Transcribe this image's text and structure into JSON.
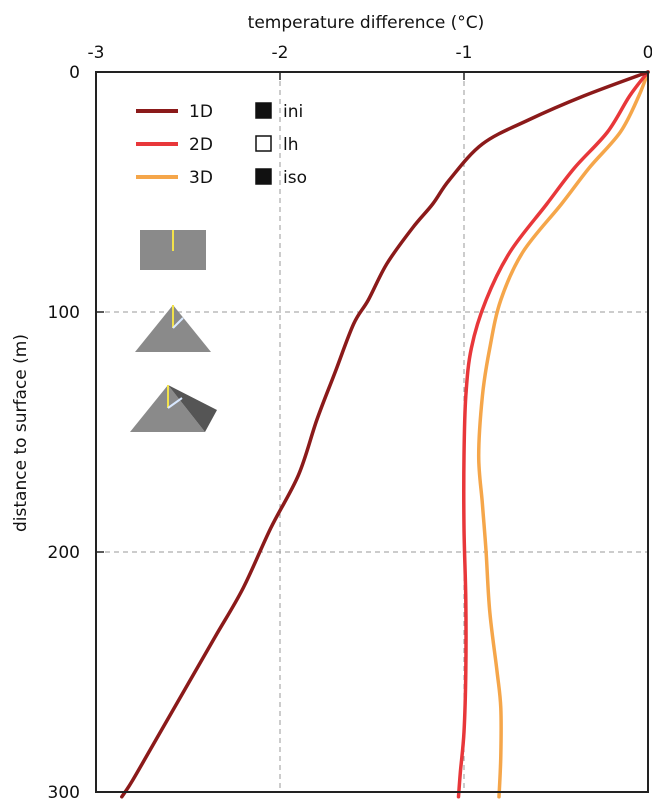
{
  "chart_data": {
    "type": "line",
    "title": "",
    "xlabel": "temperature difference (°C)",
    "ylabel": "distance to surface (m)",
    "xlim": [
      -3,
      0
    ],
    "ylim": [
      0,
      300
    ],
    "y_inverted": true,
    "x_axis_position": "top",
    "grid": true,
    "x_ticks": [
      {
        "value": -3,
        "label": "-3"
      },
      {
        "value": -2,
        "label": "-2"
      },
      {
        "value": -1,
        "label": "-1"
      },
      {
        "value": 0,
        "label": "0"
      }
    ],
    "y_ticks": [
      {
        "value": 0,
        "label": "0"
      },
      {
        "value": 100,
        "label": "100"
      },
      {
        "value": 200,
        "label": "200"
      },
      {
        "value": 300,
        "label": "300"
      }
    ],
    "series": [
      {
        "name": "1D",
        "color": "#8B1A1A",
        "points": [
          [
            0,
            0
          ],
          [
            -0.35,
            10
          ],
          [
            -0.65,
            20
          ],
          [
            -0.9,
            30
          ],
          [
            -1.08,
            45
          ],
          [
            -1.17,
            55
          ],
          [
            -1.28,
            65
          ],
          [
            -1.42,
            80
          ],
          [
            -1.52,
            95
          ],
          [
            -1.6,
            105
          ],
          [
            -1.7,
            125
          ],
          [
            -1.8,
            145
          ],
          [
            -1.9,
            168
          ],
          [
            -2.05,
            190
          ],
          [
            -2.2,
            215
          ],
          [
            -2.35,
            235
          ],
          [
            -2.5,
            255
          ],
          [
            -2.65,
            275
          ],
          [
            -2.8,
            295
          ],
          [
            -2.86,
            302
          ]
        ]
      },
      {
        "name": "2D",
        "color": "#E8373A",
        "points": [
          [
            0,
            0
          ],
          [
            -0.1,
            10
          ],
          [
            -0.22,
            25
          ],
          [
            -0.4,
            40
          ],
          [
            -0.55,
            55
          ],
          [
            -0.75,
            75
          ],
          [
            -0.88,
            95
          ],
          [
            -0.96,
            115
          ],
          [
            -0.99,
            135
          ],
          [
            -1.0,
            160
          ],
          [
            -1.0,
            190
          ],
          [
            -0.99,
            220
          ],
          [
            -0.99,
            250
          ],
          [
            -1.0,
            275
          ],
          [
            -1.02,
            292
          ],
          [
            -1.03,
            302
          ]
        ]
      },
      {
        "name": "3D",
        "color": "#F5A64A",
        "points": [
          [
            0,
            0
          ],
          [
            -0.05,
            10
          ],
          [
            -0.15,
            25
          ],
          [
            -0.32,
            40
          ],
          [
            -0.47,
            55
          ],
          [
            -0.68,
            75
          ],
          [
            -0.8,
            95
          ],
          [
            -0.86,
            115
          ],
          [
            -0.9,
            135
          ],
          [
            -0.92,
            160
          ],
          [
            -0.9,
            180
          ],
          [
            -0.88,
            200
          ],
          [
            -0.86,
            225
          ],
          [
            -0.82,
            250
          ],
          [
            -0.8,
            265
          ],
          [
            -0.8,
            285
          ],
          [
            -0.81,
            302
          ]
        ]
      }
    ],
    "legend": {
      "placement": "top-left",
      "entries": [
        {
          "series": "1D",
          "color": "#8B1A1A"
        },
        {
          "series": "2D",
          "color": "#E8373A"
        },
        {
          "series": "3D",
          "color": "#F5A64A"
        }
      ],
      "markers": [
        {
          "label": "ini",
          "filled": true
        },
        {
          "label": "lh",
          "filled": false
        },
        {
          "label": "iso",
          "filled": true
        }
      ]
    },
    "geometry_icons": [
      {
        "shape": "rectangle-block",
        "color": "#8a8a8a",
        "line_color": "#f2e24a"
      },
      {
        "shape": "triangle-ridge",
        "color": "#8a8a8a",
        "line_color": "#f2e24a"
      },
      {
        "shape": "pyramid",
        "color": "#8a8a8a",
        "line_color": "#f2e24a"
      }
    ]
  }
}
